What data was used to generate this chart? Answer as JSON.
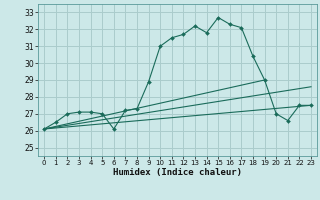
{
  "title": "",
  "xlabel": "Humidex (Indice chaleur)",
  "bg_color": "#cce8e8",
  "grid_color": "#aacccc",
  "line_color": "#1a6b5a",
  "xlim": [
    -0.5,
    23.5
  ],
  "ylim": [
    24.5,
    33.5
  ],
  "xticks": [
    0,
    1,
    2,
    3,
    4,
    5,
    6,
    7,
    8,
    9,
    10,
    11,
    12,
    13,
    14,
    15,
    16,
    17,
    18,
    19,
    20,
    21,
    22,
    23
  ],
  "yticks": [
    25,
    26,
    27,
    28,
    29,
    30,
    31,
    32,
    33
  ],
  "series1": {
    "x": [
      0,
      1,
      2,
      3,
      4,
      5,
      6,
      7,
      8,
      9,
      10,
      11,
      12,
      13,
      14,
      15,
      16,
      17,
      18,
      19,
      20,
      21,
      22,
      23
    ],
    "y": [
      26.1,
      26.5,
      27.0,
      27.1,
      27.1,
      27.0,
      26.1,
      27.2,
      27.3,
      28.9,
      31.0,
      31.5,
      31.7,
      32.2,
      31.8,
      32.7,
      32.3,
      32.1,
      30.4,
      29.0,
      27.0,
      26.6,
      27.5,
      27.5
    ]
  },
  "series2": {
    "x": [
      0,
      23
    ],
    "y": [
      26.1,
      27.5
    ]
  },
  "series3": {
    "x": [
      0,
      23
    ],
    "y": [
      26.1,
      28.6
    ]
  },
  "series4": {
    "x": [
      0,
      19
    ],
    "y": [
      26.1,
      29.0
    ]
  }
}
